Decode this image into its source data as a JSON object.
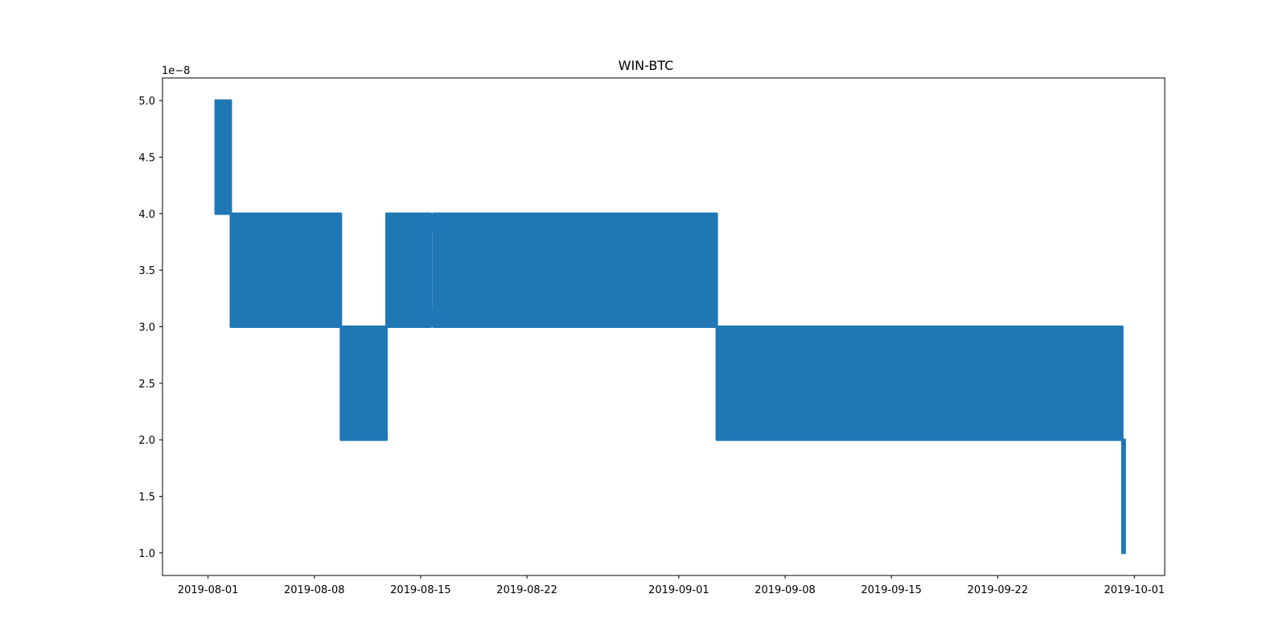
{
  "chart_data": {
    "type": "line",
    "title": "WIN-BTC",
    "xlabel": "",
    "ylabel": "",
    "y_offset_label": "1e−8",
    "xlim": [
      "2019-07-29",
      "2019-10-03"
    ],
    "ylim": [
      8e-09,
      5.2e-08
    ],
    "x_ticks": [
      "2019-08-01",
      "2019-08-08",
      "2019-08-15",
      "2019-08-22",
      "2019-09-01",
      "2019-09-08",
      "2019-09-15",
      "2019-09-22",
      "2019-10-01"
    ],
    "y_ticks": [
      1e-08,
      1.5e-08,
      2e-08,
      2.5e-08,
      3e-08,
      3.5e-08,
      4e-08,
      4.5e-08,
      5e-08
    ],
    "y_tick_labels": [
      "1.0",
      "1.5",
      "2.0",
      "2.5",
      "3.0",
      "3.5",
      "4.0",
      "4.5",
      "5.0"
    ],
    "grid": false,
    "legend": "none",
    "color": "#1f77b4",
    "series": [
      {
        "note_segments": "price oscillates rapidly between low and high in each period",
        "segments": [
          {
            "start": "2019-08-01T12:00",
            "end": "2019-08-02T12:00",
            "low": 4e-08,
            "high": 5e-08
          },
          {
            "start": "2019-08-02T12:00",
            "end": "2019-08-09T18:00",
            "low": 3e-08,
            "high": 4e-08
          },
          {
            "start": "2019-08-09T18:00",
            "end": "2019-08-12T18:00",
            "low": 2e-08,
            "high": 3e-08
          },
          {
            "start": "2019-08-12T18:00",
            "end": "2019-08-15T16:00",
            "low": 3e-08,
            "high": 4e-08
          },
          {
            "start": "2019-08-15T20:00",
            "end": "2019-09-03T12:00",
            "low": 3e-08,
            "high": 4e-08
          },
          {
            "start": "2019-09-03T12:00",
            "end": "2019-09-30T05:00",
            "low": 2e-08,
            "high": 3e-08
          },
          {
            "start": "2019-09-30T05:00",
            "end": "2019-09-30T08:00",
            "low": 1e-08,
            "high": 2e-08
          }
        ]
      }
    ]
  }
}
